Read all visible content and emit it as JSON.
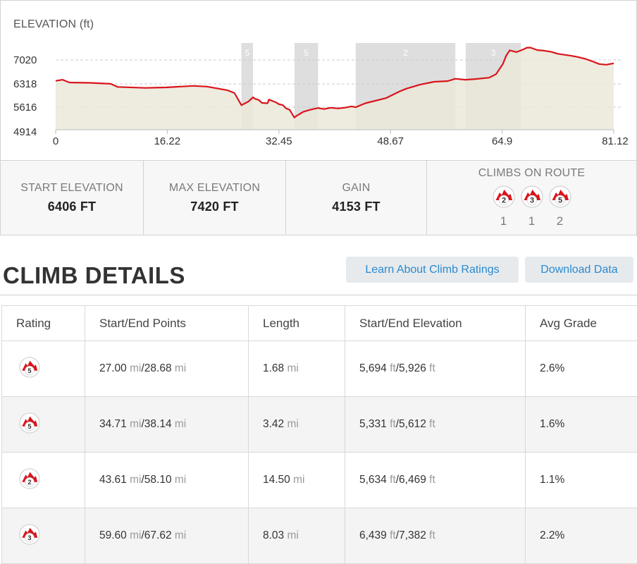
{
  "chart": {
    "title": "ELEVATION (ft)",
    "y_ticks": [
      "7020",
      "6318",
      "5616",
      "4914"
    ],
    "x_ticks": [
      "0",
      "16.22",
      "32.45",
      "48.67",
      "64.9",
      "81.12"
    ]
  },
  "chart_data": {
    "type": "area",
    "title": "ELEVATION (ft)",
    "xlabel": "",
    "ylabel": "",
    "xlim": [
      0,
      81.12
    ],
    "ylim": [
      4914,
      7420
    ],
    "grid": true,
    "series": [
      {
        "x": [
          0,
          1,
          2,
          5,
          8,
          9,
          13,
          16,
          20,
          22,
          25,
          26,
          27,
          28,
          28.7,
          29,
          29.5,
          30,
          30.8,
          31,
          31.5,
          32,
          32.5,
          33,
          33.5,
          34,
          34.7,
          35,
          35.5,
          36,
          37,
          38.14,
          39,
          40,
          41,
          42,
          43,
          43.61,
          45,
          48,
          50,
          51,
          53,
          55,
          57,
          58.1,
          59.6,
          61,
          63,
          64,
          65,
          65.5,
          66,
          67,
          68,
          68.5,
          69,
          70,
          71,
          72,
          73,
          75,
          76,
          77,
          78,
          79,
          80,
          81.12
        ],
        "y": [
          6406,
          6440,
          6360,
          6350,
          6320,
          6230,
          6200,
          6215,
          6260,
          6240,
          6130,
          6050,
          5694,
          5800,
          5926,
          5880,
          5850,
          5760,
          5750,
          5860,
          5820,
          5780,
          5720,
          5700,
          5600,
          5560,
          5331,
          5380,
          5440,
          5500,
          5560,
          5612,
          5580,
          5620,
          5600,
          5620,
          5660,
          5634,
          5750,
          5900,
          6100,
          6180,
          6300,
          6380,
          6400,
          6469,
          6439,
          6460,
          6500,
          6600,
          6900,
          7150,
          7300,
          7250,
          7330,
          7380,
          7382,
          7310,
          7290,
          7260,
          7200,
          7140,
          7100,
          7050,
          6980,
          6900,
          6880,
          6920
        ]
      }
    ],
    "climb_bands": [
      {
        "category": "5",
        "start": 27.0,
        "end": 28.68
      },
      {
        "category": "5",
        "start": 34.71,
        "end": 38.14
      },
      {
        "category": "2",
        "start": 43.61,
        "end": 58.1
      },
      {
        "category": "3",
        "start": 59.6,
        "end": 67.62
      }
    ]
  },
  "stats": {
    "start_label": "START ELEVATION",
    "start_value": "6406 FT",
    "max_label": "MAX ELEVATION",
    "max_value": "7420 FT",
    "gain_label": "GAIN",
    "gain_value": "4153 FT",
    "climbs_label": "CLIMBS ON ROUTE",
    "climb_categories": [
      {
        "category": "2",
        "count": "1"
      },
      {
        "category": "3",
        "count": "1"
      },
      {
        "category": "5",
        "count": "2"
      }
    ]
  },
  "details": {
    "title": "CLIMB DETAILS",
    "learn_button": "Learn About Climb Ratings",
    "download_button": "Download Data"
  },
  "table": {
    "headers": [
      "Rating",
      "Start/End Points",
      "Length",
      "Start/End Elevation",
      "Avg Grade"
    ],
    "dist_unit": "mi",
    "elev_unit": "ft",
    "rows": [
      {
        "rating": "5",
        "start_pt": "27.00",
        "end_pt": "28.68",
        "length": "1.68",
        "start_elev": "5,694",
        "end_elev": "5,926",
        "grade": "2.6%"
      },
      {
        "rating": "5",
        "start_pt": "34.71",
        "end_pt": "38.14",
        "length": "3.42",
        "start_elev": "5,331",
        "end_elev": "5,612",
        "grade": "1.6%"
      },
      {
        "rating": "2",
        "start_pt": "43.61",
        "end_pt": "58.10",
        "length": "14.50",
        "start_elev": "5,634",
        "end_elev": "6,469",
        "grade": "1.1%"
      },
      {
        "rating": "3",
        "start_pt": "59.60",
        "end_pt": "67.62",
        "length": "8.03",
        "start_elev": "6,439",
        "end_elev": "7,382",
        "grade": "2.2%"
      }
    ]
  },
  "colors": {
    "line": "#d9151b",
    "fill": "#ebe8d9",
    "band": "#dedede",
    "grid": "#cccccc",
    "badge_red": "#d9151b",
    "link": "#2a8ad1"
  }
}
